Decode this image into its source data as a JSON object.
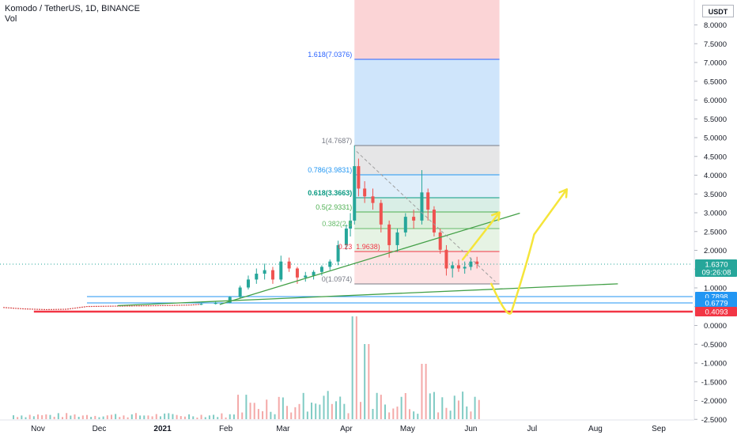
{
  "header": {
    "symbol_line": "Komodo / TetherUS, 1D, BINANCE",
    "volume_label": "Vol"
  },
  "currency_button": "USDT",
  "chart_data": {
    "type": "candlestick",
    "y_scale": "log",
    "y_tick_labels": [
      "8.0000",
      "7.5000",
      "7.0000",
      "6.5000",
      "6.0000",
      "5.5000",
      "5.0000",
      "4.5000",
      "4.0000",
      "3.5000",
      "3.0000",
      "2.5000",
      "2.0000",
      "1.5000",
      "1.0000",
      "0.5000",
      "0.0000",
      "-0.5000",
      "-1.0000",
      "-1.5000",
      "-2.0000",
      "-2.5000"
    ],
    "x_tick_labels": [
      {
        "label": "Nov",
        "date": "2020-11-01",
        "bold": false
      },
      {
        "label": "Dec",
        "date": "2020-12-01",
        "bold": false
      },
      {
        "label": "2021",
        "date": "2021-01-01",
        "bold": true
      },
      {
        "label": "Feb",
        "date": "2021-02-01",
        "bold": false
      },
      {
        "label": "Mar",
        "date": "2021-03-01",
        "bold": false
      },
      {
        "label": "Apr",
        "date": "2021-04-01",
        "bold": false
      },
      {
        "label": "May",
        "date": "2021-05-01",
        "bold": false
      },
      {
        "label": "Jun",
        "date": "2021-06-01",
        "bold": false
      },
      {
        "label": "Jul",
        "date": "2021-07-01",
        "bold": false
      },
      {
        "label": "Aug",
        "date": "2021-08-01",
        "bold": false
      },
      {
        "label": "Sep",
        "date": "2021-09-01",
        "bold": false
      }
    ],
    "fib_levels": [
      {
        "label": "1.618(7.0376)",
        "price": 7.0376,
        "color": "#2962ff"
      },
      {
        "label": "1(4.7687)",
        "price": 4.7687,
        "color": "#787b86"
      },
      {
        "label": "0.786(3.9831)",
        "price": 3.9831,
        "color": "#2196f3"
      },
      {
        "label": "0.618(3.3663)",
        "price": 3.3663,
        "color": "#089981"
      },
      {
        "label": "0.5(2.9331)",
        "price": 2.9331,
        "color": "#4caf50"
      },
      {
        "label": "0.382(2.5",
        "price": 2.5,
        "color": "#66bb6a"
      },
      {
        "label": "0.23",
        "extra": "1.9638)",
        "price": 1.9638,
        "color": "#f23645"
      },
      {
        "label": "0(1.0974)",
        "price": 1.0974,
        "color": "#787b86"
      }
    ],
    "fib_range": {
      "start": "2021-04-05",
      "end": "2021-06-15"
    },
    "price_tags": [
      {
        "value": "1.6370",
        "sub": "09:26:08",
        "price": 1.637,
        "color": "#26a69a"
      },
      {
        "value": "0.7898",
        "price": 0.7898,
        "color": "#2196f3"
      },
      {
        "value": "0.6779",
        "price": 0.6779,
        "color": "#2196f3"
      },
      {
        "value": "0.4093",
        "price": 0.4093,
        "color": "#f23645"
      }
    ],
    "horizontal_lines": [
      {
        "price": 0.7898,
        "from": "2020-11-25",
        "color": "#2196f3"
      },
      {
        "price": 0.6779,
        "from": "2020-11-25",
        "color": "#2196f3"
      },
      {
        "price": 0.4093,
        "from": "2020-10-30",
        "color": "#f23645"
      }
    ],
    "trend_lines": [
      {
        "from": [
          "2021-01-29",
          0.62
        ],
        "to": [
          "2021-06-25",
          2.9
        ],
        "color": "#43a047"
      },
      {
        "from": [
          "2020-12-10",
          0.58
        ],
        "to": [
          "2021-08-12",
          1.1
        ],
        "color": "#43a047"
      },
      {
        "from": [
          "2021-04-06",
          4.6
        ],
        "to": [
          "2021-06-13",
          1.15
        ],
        "color": "#9e9e9e",
        "dashed": true
      }
    ],
    "projection_path": [
      [
        "2021-05-28",
        1.75
      ],
      [
        "2021-06-15",
        2.92
      ],
      [
        "2021-06-11",
        1.1
      ],
      [
        "2021-06-20",
        0.45
      ],
      [
        "2021-07-02",
        2.35
      ],
      [
        "2021-07-18",
        3.58
      ]
    ],
    "candles": [
      [
        "2021-01-20",
        0.63,
        0.66,
        0.6,
        0.64
      ],
      [
        "2021-01-27",
        0.64,
        0.7,
        0.62,
        0.68
      ],
      [
        "2021-02-03",
        0.68,
        0.8,
        0.66,
        0.78
      ],
      [
        "2021-02-08",
        0.78,
        1.05,
        0.75,
        1.0
      ],
      [
        "2021-02-12",
        1.0,
        1.3,
        0.95,
        1.2
      ],
      [
        "2021-02-16",
        1.2,
        1.5,
        1.1,
        1.35
      ],
      [
        "2021-02-20",
        1.35,
        1.65,
        1.2,
        1.45
      ],
      [
        "2021-02-24",
        1.45,
        1.55,
        1.1,
        1.2
      ],
      [
        "2021-02-28",
        1.2,
        1.85,
        1.15,
        1.7
      ],
      [
        "2021-03-04",
        1.7,
        1.8,
        1.4,
        1.5
      ],
      [
        "2021-03-08",
        1.5,
        1.55,
        1.1,
        1.25
      ],
      [
        "2021-03-12",
        1.25,
        1.4,
        1.15,
        1.3
      ],
      [
        "2021-03-16",
        1.3,
        1.45,
        1.2,
        1.4
      ],
      [
        "2021-03-20",
        1.4,
        1.6,
        1.3,
        1.55
      ],
      [
        "2021-03-24",
        1.55,
        1.75,
        1.45,
        1.7
      ],
      [
        "2021-03-28",
        1.7,
        2.2,
        1.6,
        2.1
      ],
      [
        "2021-04-01",
        2.1,
        2.6,
        2.0,
        2.5
      ],
      [
        "2021-04-03",
        2.5,
        2.9,
        2.3,
        2.7
      ],
      [
        "2021-04-05",
        2.7,
        4.77,
        2.6,
        4.2
      ],
      [
        "2021-04-07",
        4.2,
        4.4,
        3.4,
        3.6
      ],
      [
        "2021-04-10",
        3.6,
        3.8,
        3.2,
        3.4
      ],
      [
        "2021-04-14",
        3.4,
        3.6,
        3.0,
        3.2
      ],
      [
        "2021-04-18",
        3.2,
        3.3,
        2.4,
        2.6
      ],
      [
        "2021-04-22",
        2.6,
        2.7,
        1.8,
        2.1
      ],
      [
        "2021-04-26",
        2.1,
        2.5,
        1.95,
        2.4
      ],
      [
        "2021-04-30",
        2.4,
        2.9,
        2.3,
        2.8
      ],
      [
        "2021-05-04",
        2.8,
        3.0,
        2.5,
        2.7
      ],
      [
        "2021-05-08",
        2.7,
        4.1,
        2.6,
        3.5
      ],
      [
        "2021-05-11",
        3.5,
        3.6,
        2.7,
        3.0
      ],
      [
        "2021-05-14",
        3.0,
        3.1,
        2.3,
        2.4
      ],
      [
        "2021-05-17",
        2.4,
        2.5,
        1.9,
        2.0
      ],
      [
        "2021-05-20",
        2.0,
        2.1,
        1.3,
        1.5
      ],
      [
        "2021-05-23",
        1.5,
        1.7,
        1.25,
        1.6
      ],
      [
        "2021-05-26",
        1.6,
        1.75,
        1.4,
        1.5
      ],
      [
        "2021-05-29",
        1.5,
        1.7,
        1.35,
        1.55
      ],
      [
        "2021-06-01",
        1.55,
        1.8,
        1.45,
        1.7
      ],
      [
        "2021-06-04",
        1.7,
        1.82,
        1.5,
        1.64
      ]
    ]
  }
}
